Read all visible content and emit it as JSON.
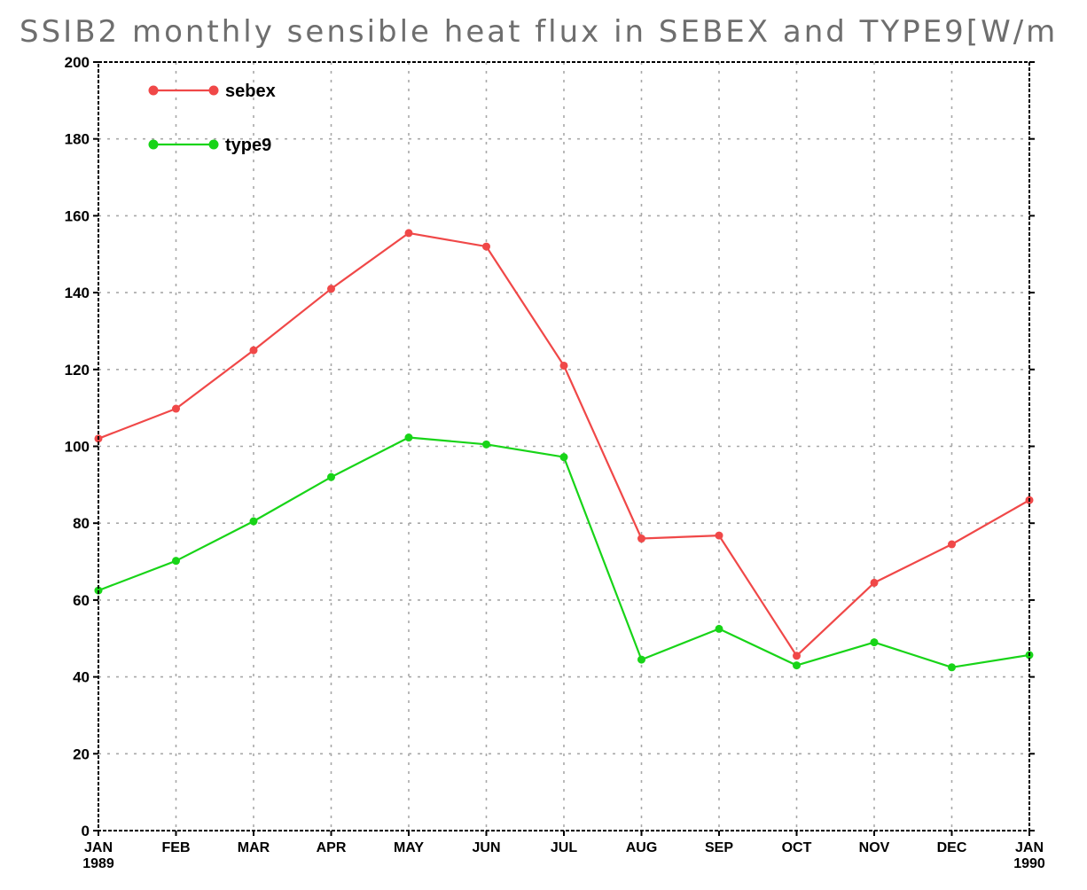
{
  "chart_data": {
    "type": "line",
    "title": "SSIB2 monthly sensible heat flux in SEBEX and TYPE9[W/m",
    "xlabel": "",
    "ylabel": "",
    "categories": [
      "JAN",
      "FEB",
      "MAR",
      "APR",
      "MAY",
      "JUN",
      "JUL",
      "AUG",
      "SEP",
      "OCT",
      "NOV",
      "DEC",
      "JAN"
    ],
    "x_sublabels": [
      "1989",
      "",
      "",
      "",
      "",
      "",
      "",
      "",
      "",
      "",
      "",
      "",
      "1990"
    ],
    "ylim": [
      0,
      200
    ],
    "yticks": [
      0,
      20,
      40,
      60,
      80,
      100,
      120,
      140,
      160,
      180,
      200
    ],
    "grid": true,
    "legend_position": "top-left",
    "series": [
      {
        "name": "sebex",
        "color": "#f04848",
        "values": [
          102,
          109.8,
          125,
          141,
          155.5,
          152,
          121,
          76,
          76.8,
          45.5,
          64.5,
          74.5,
          86
        ]
      },
      {
        "name": "type9",
        "color": "#18d418",
        "values": [
          62.5,
          70.2,
          80.5,
          92,
          102.3,
          100.5,
          97.2,
          44.5,
          52.5,
          43,
          49,
          42.5,
          45.7
        ]
      }
    ]
  }
}
